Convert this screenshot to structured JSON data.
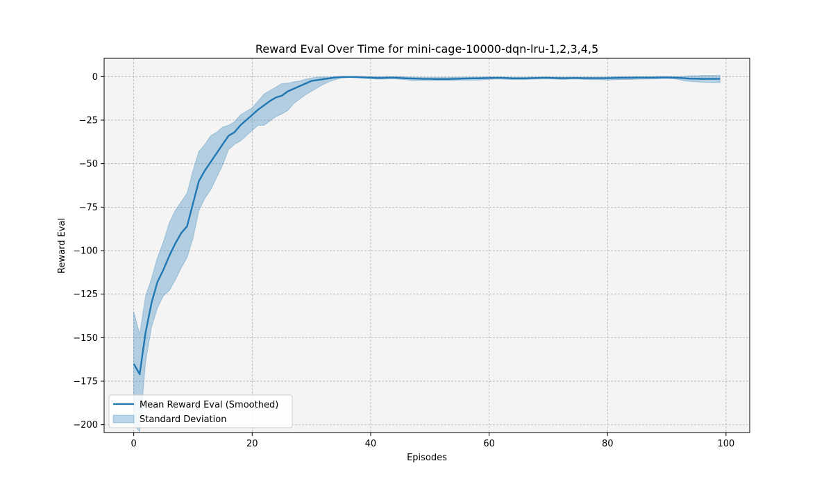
{
  "chart_data": {
    "type": "line",
    "title": "Reward Eval Over Time for mini-cage-10000-dqn-lru-1,2,3,4,5",
    "xlabel": "Episodes",
    "ylabel": "Reward Eval",
    "xlim": [
      -5,
      104
    ],
    "ylim": [
      -204.5,
      10.5
    ],
    "xticks": [
      0,
      20,
      40,
      60,
      80,
      100
    ],
    "xtick_labels": [
      "0",
      "20",
      "40",
      "60",
      "80",
      "100"
    ],
    "yticks": [
      0,
      -25,
      -50,
      -75,
      -100,
      -125,
      -150,
      -175,
      -200
    ],
    "ytick_labels": [
      "0",
      "−25",
      "−50",
      "−75",
      "−100",
      "−125",
      "−150",
      "−175",
      "−200"
    ],
    "grid": true,
    "legend_position": "bottom-left",
    "colors": {
      "line": "#1f77b4",
      "band": "#1f77b4",
      "plot_background": "#f4f4f4",
      "grid": "#b0b0b0"
    },
    "series": [
      {
        "name": "Mean Reward Eval (Smoothed)",
        "kind": "line",
        "x": [
          0,
          1,
          2,
          3,
          4,
          5,
          6,
          7,
          8,
          9,
          10,
          11,
          12,
          13,
          14,
          15,
          16,
          17,
          18,
          19,
          20,
          21,
          22,
          23,
          24,
          25,
          26,
          27,
          28,
          29,
          30,
          31,
          32,
          33,
          34,
          35,
          36,
          37,
          38,
          39,
          40,
          41,
          42,
          43,
          44,
          45,
          46,
          47,
          48,
          49,
          50,
          51,
          52,
          53,
          54,
          55,
          56,
          57,
          58,
          59,
          60,
          61,
          62,
          63,
          64,
          65,
          66,
          67,
          68,
          69,
          70,
          71,
          72,
          73,
          74,
          75,
          76,
          77,
          78,
          79,
          80,
          81,
          82,
          83,
          84,
          85,
          86,
          87,
          88,
          89,
          90,
          91,
          92,
          93,
          94,
          95,
          96,
          97,
          98,
          99
        ],
        "y": [
          -165,
          -171,
          -147,
          -130,
          -118,
          -111,
          -103,
          -96,
          -90,
          -86,
          -73,
          -60,
          -54,
          -49,
          -44,
          -39,
          -34,
          -32,
          -28,
          -25,
          -22,
          -19,
          -16.5,
          -14,
          -12,
          -11,
          -8.5,
          -7,
          -5.5,
          -4,
          -2.5,
          -2,
          -1.5,
          -1,
          -0.5,
          -0.3,
          -0.2,
          -0.2,
          -0.3,
          -0.5,
          -0.6,
          -0.8,
          -0.8,
          -0.6,
          -0.6,
          -0.8,
          -1,
          -1.1,
          -1.2,
          -1.3,
          -1.3,
          -1.4,
          -1.4,
          -1.4,
          -1.3,
          -1.2,
          -1.1,
          -1,
          -1,
          -0.9,
          -0.8,
          -0.7,
          -0.7,
          -0.8,
          -1,
          -1,
          -1,
          -0.9,
          -0.8,
          -0.7,
          -0.7,
          -0.8,
          -0.9,
          -0.9,
          -0.8,
          -0.8,
          -0.9,
          -0.9,
          -0.9,
          -0.9,
          -0.9,
          -0.8,
          -0.7,
          -0.7,
          -0.7,
          -0.6,
          -0.6,
          -0.6,
          -0.6,
          -0.5,
          -0.5,
          -0.6,
          -0.7,
          -0.9,
          -1.2,
          -1.2,
          -1.3,
          -1.3,
          -1.3,
          -1.3
        ]
      },
      {
        "name": "Standard Deviation",
        "kind": "band",
        "x": [
          0,
          1,
          2,
          3,
          4,
          5,
          6,
          7,
          8,
          9,
          10,
          11,
          12,
          13,
          14,
          15,
          16,
          17,
          18,
          19,
          20,
          21,
          22,
          23,
          24,
          25,
          26,
          27,
          28,
          29,
          30,
          31,
          32,
          33,
          34,
          35,
          36,
          37,
          38,
          39,
          40,
          41,
          42,
          43,
          44,
          45,
          46,
          47,
          48,
          49,
          50,
          51,
          52,
          53,
          54,
          55,
          56,
          57,
          58,
          59,
          60,
          61,
          62,
          63,
          64,
          65,
          66,
          67,
          68,
          69,
          70,
          71,
          72,
          73,
          74,
          75,
          76,
          77,
          78,
          79,
          80,
          81,
          82,
          83,
          84,
          85,
          86,
          87,
          88,
          89,
          90,
          91,
          92,
          93,
          94,
          95,
          96,
          97,
          98,
          99
        ],
        "upper": [
          -135,
          -148,
          -126,
          -116,
          -104,
          -95,
          -84,
          -77,
          -72,
          -67,
          -54,
          -43,
          -39,
          -34,
          -32,
          -29,
          -28,
          -26,
          -22,
          -20,
          -18,
          -14,
          -10,
          -8,
          -6,
          -4,
          -3.8,
          -3,
          -2.5,
          -1.5,
          -0.8,
          -0.3,
          -0.2,
          -0.2,
          -0.1,
          0,
          0,
          0,
          0,
          0,
          0,
          0,
          0,
          0,
          0,
          0,
          -0.2,
          -0.3,
          -0.4,
          -0.5,
          -0.5,
          -0.5,
          -0.5,
          -0.5,
          -0.4,
          -0.4,
          -0.3,
          -0.3,
          -0.3,
          -0.2,
          -0.2,
          -0.2,
          -0.2,
          -0.3,
          -0.4,
          -0.4,
          -0.4,
          -0.3,
          -0.3,
          -0.2,
          -0.2,
          -0.3,
          -0.3,
          -0.3,
          -0.3,
          -0.3,
          -0.3,
          -0.3,
          -0.3,
          -0.3,
          -0.3,
          0,
          0,
          0,
          0,
          0,
          0,
          0,
          0,
          0,
          0,
          0,
          0,
          0.2,
          0.5,
          0.5,
          0.7,
          0.7,
          0.7,
          0.7
        ],
        "lower": [
          -200,
          -204,
          -164,
          -144,
          -133,
          -126,
          -123,
          -117,
          -110,
          -104,
          -93,
          -77,
          -70,
          -65,
          -58,
          -51,
          -42,
          -39,
          -37,
          -34,
          -31,
          -28,
          -28,
          -25.5,
          -23,
          -21.5,
          -19.5,
          -15.5,
          -13,
          -10.5,
          -8.5,
          -6.5,
          -4.5,
          -3,
          -1.8,
          -0.8,
          -0.6,
          -0.5,
          -0.8,
          -1,
          -1.2,
          -1.4,
          -1.4,
          -1.3,
          -1.3,
          -1.5,
          -1.8,
          -2.2,
          -2.2,
          -2.2,
          -2.2,
          -2.3,
          -2.3,
          -2.3,
          -2.2,
          -2,
          -2,
          -2,
          -2,
          -1.8,
          -1.6,
          -1.4,
          -1.4,
          -1.6,
          -1.7,
          -1.7,
          -1.7,
          -1.5,
          -1.4,
          -1.3,
          -1.3,
          -1.4,
          -1.6,
          -1.6,
          -1.4,
          -1.4,
          -1.6,
          -1.7,
          -1.7,
          -1.8,
          -2,
          -1.8,
          -1.7,
          -1.6,
          -1.6,
          -1.5,
          -1.4,
          -1.4,
          -1.3,
          -1.2,
          -1.1,
          -1.2,
          -1.6,
          -2.5,
          -2.8,
          -3,
          -3.2,
          -3.3,
          -3.4,
          -3.5
        ]
      }
    ]
  }
}
